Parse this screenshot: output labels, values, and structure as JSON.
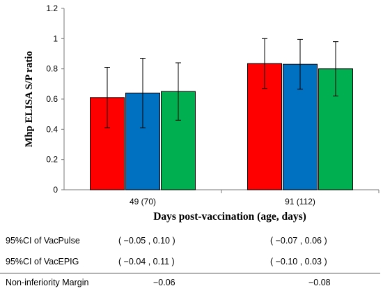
{
  "chart_data": {
    "type": "bar",
    "categories": [
      "49 (70)",
      "91 (112)"
    ],
    "series": [
      {
        "values": [
          0.61,
          0.835
        ],
        "error": [
          0.2,
          0.165
        ],
        "color": "#ff0000"
      },
      {
        "values": [
          0.64,
          0.83
        ],
        "error": [
          0.23,
          0.165
        ],
        "color": "#0070c0"
      },
      {
        "values": [
          0.65,
          0.8
        ],
        "error": [
          0.19,
          0.18
        ],
        "color": "#00b050"
      }
    ],
    "ylabel": "Mhp ELISA S/P ratio",
    "xlabel": "Days post-vaccination (age, days)",
    "ylim": [
      0,
      1.2
    ],
    "yticks": [
      "0",
      "0.2",
      "0.4",
      "0.6",
      "0.8",
      "1",
      "1.2"
    ],
    "grid": false,
    "legend": "none"
  },
  "table": {
    "rows": [
      {
        "label": "95%CI of VacPulse",
        "values": [
          "( −0.05 , 0.10 )",
          "( −0.07 , 0.06 )"
        ]
      },
      {
        "label": "95%CI of VacEPIG",
        "values": [
          "( −0.04 , 0.11 )",
          "( −0.10 , 0.03 )"
        ]
      }
    ],
    "margin": {
      "label": "Non-inferiority Margin",
      "values": [
        "−0.06",
        "−0.08"
      ]
    }
  }
}
